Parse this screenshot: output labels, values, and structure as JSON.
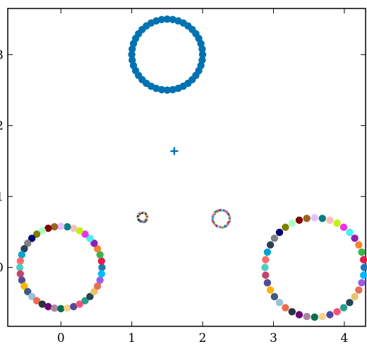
{
  "chart_data": {
    "type": "scatter",
    "title": "",
    "xlabel": "",
    "ylabel": "",
    "xlim": [
      -0.75,
      4.3
    ],
    "ylim": [
      -0.83,
      3.65
    ],
    "grid": false,
    "x_ticks": [
      0,
      1,
      2,
      3,
      4
    ],
    "x_tick_labels": [
      "0",
      "1",
      "2",
      "3",
      "4"
    ],
    "y_ticks": [
      0,
      1,
      2,
      3
    ],
    "y_tick_labels": [
      "0",
      "1",
      "2",
      "3"
    ],
    "rings": [
      {
        "center": [
          1.5,
          3.0
        ],
        "radius": 0.5,
        "points": 40,
        "marker": "circle",
        "color_mode": "single",
        "color": "#0072b2"
      },
      {
        "center": [
          0.0,
          0.0
        ],
        "radius": 0.58,
        "points": 40,
        "marker": "circle",
        "color_mode": "multi"
      },
      {
        "center": [
          3.58,
          0.0
        ],
        "radius": 0.7,
        "points": 40,
        "marker": "circle",
        "color_mode": "multi"
      },
      {
        "center": [
          1.15,
          0.71
        ],
        "radius": 0.065,
        "points": 24,
        "marker": "pixel-cluster",
        "color_mode": "multi"
      },
      {
        "center": [
          2.26,
          0.69
        ],
        "radius": 0.12,
        "points": 30,
        "marker": "pixel-cluster",
        "color_mode": "multi"
      }
    ],
    "single_points": [
      {
        "x": 1.6,
        "y": 1.64,
        "marker": "plus",
        "color": "#0072b2"
      }
    ],
    "palette": [
      "#1f77b4",
      "#e6194b",
      "#3cb44b",
      "#f58231",
      "#911eb4",
      "#46f0f0",
      "#f032e6",
      "#bcf60c",
      "#fabebe",
      "#008080",
      "#e6beff",
      "#9a6324",
      "#800000",
      "#aaffc3",
      "#808000",
      "#000075",
      "#808080",
      "#2e4057",
      "#00a5cf",
      "#ff6b6b",
      "#4ecdc4",
      "#c44569",
      "#574b90",
      "#f8b500",
      "#3d5a80",
      "#98c1d9",
      "#ee6c4d",
      "#293241",
      "#6a0572",
      "#ab83a1",
      "#0b6e4f",
      "#f7d08a",
      "#52489c",
      "#ff4f79",
      "#2a9d8f",
      "#264653",
      "#e9c46a",
      "#e76f51",
      "#9b5de5",
      "#00bbf9"
    ]
  }
}
